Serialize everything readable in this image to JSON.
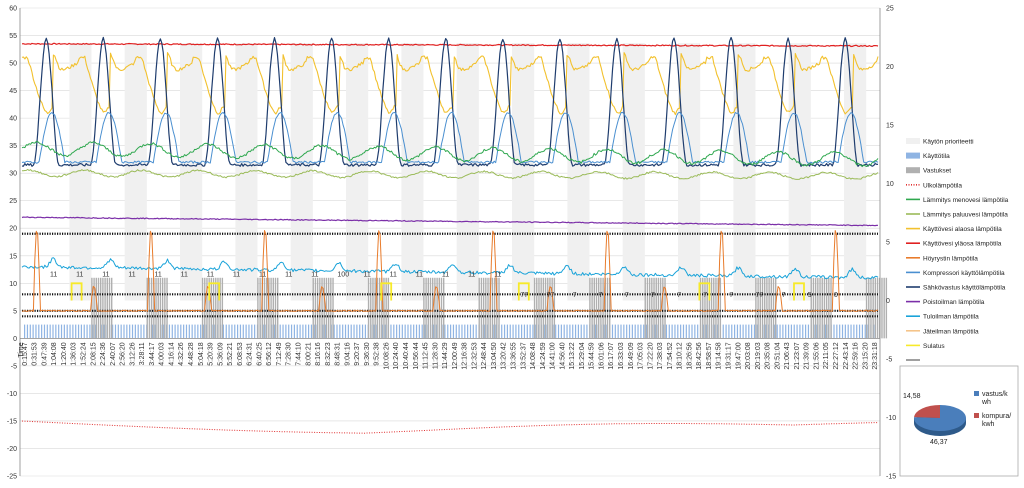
{
  "chart_data": [
    {
      "type": "line",
      "title": "",
      "xlabel": "",
      "ylabel": "",
      "ylim_left": [
        -25,
        60
      ],
      "yticks_left": [
        -25,
        -20,
        -15,
        -10,
        -5,
        0,
        5,
        10,
        15,
        20,
        25,
        30,
        35,
        40,
        45,
        50,
        55,
        60
      ],
      "ylim_right": [
        -15,
        25
      ],
      "yticks_right": [
        -15,
        -10,
        -5,
        0,
        5,
        10,
        15,
        20,
        25
      ],
      "x_first_label": "Time",
      "x": [
        "0:15:47",
        "0:31:53",
        "0:47:39",
        "1:04:08",
        "1:20:40",
        "1:36:03",
        "1:52:24",
        "2:08:15",
        "2:24:36",
        "2:40:07",
        "2:56:20",
        "3:12:26",
        "3:28:11",
        "3:44:17",
        "4:00:03",
        "4:16:14",
        "4:32:26",
        "4:48:28",
        "5:04:18",
        "5:20:39",
        "5:36:09",
        "5:52:21",
        "6:08:53",
        "6:24:31",
        "6:40:25",
        "6:56:12",
        "7:12:49",
        "7:28:30",
        "7:44:10",
        "8:00:21",
        "8:16:16",
        "8:32:23",
        "8:48:31",
        "9:04:16",
        "9:20:37",
        "9:36:30",
        "9:52:38",
        "10:08:26",
        "10:24:40",
        "10:40:44",
        "10:56:44",
        "11:12:45",
        "11:28:30",
        "11:44:29",
        "12:00:49",
        "12:16:38",
        "12:32:53",
        "12:48:44",
        "13:04:50",
        "13:20:42",
        "13:36:55",
        "13:52:37",
        "14:08:48",
        "14:24:59",
        "14:41:00",
        "14:56:40",
        "15:13:22",
        "15:29:04",
        "15:44:59",
        "16:01:06",
        "16:17:07",
        "16:33:03",
        "16:49:09",
        "17:05:03",
        "17:22:20",
        "17:38:03",
        "17:54:52",
        "18:10:12",
        "18:26:56",
        "18:42:56",
        "18:58:57",
        "19:14:58",
        "19:31:17",
        "19:47:00",
        "20:03:08",
        "20:19:03",
        "20:35:08",
        "20:51:04",
        "21:06:43",
        "21:23:07",
        "21:39:09",
        "21:55:06",
        "22:11:05",
        "22:27:12",
        "22:43:14",
        "22:59:16",
        "23:15:20",
        "23:31:18"
      ],
      "series": [
        {
          "name": "Käytön prioriteetti",
          "color": "#f0f0f0",
          "axis": "right",
          "kind": "area"
        },
        {
          "name": "Käyttötila",
          "color": "#8fb4e3",
          "axis": "right",
          "kind": "bar"
        },
        {
          "name": "Vastukset",
          "color": "#b0b0b0",
          "axis": "right",
          "kind": "bar"
        },
        {
          "name": "Ulkolämpötila",
          "color": "#e03030",
          "axis": "right",
          "kind": "dotted",
          "approx_range": [
            -12,
            -10
          ]
        },
        {
          "name": "Lämmitys menovesi lämpötila",
          "color": "#2fa84f",
          "axis": "left",
          "approx_range": [
            31,
            36
          ]
        },
        {
          "name": "Lämmitys paluuvesi lämpötila",
          "color": "#9bbb59",
          "axis": "left",
          "approx_range": [
            29,
            31
          ]
        },
        {
          "name": "Käyttövesi alaosa lämpötila",
          "color": "#f2c12e",
          "axis": "left",
          "approx_range": [
            37,
            55
          ]
        },
        {
          "name": "Käyttövesi yläosa lämpötila",
          "color": "#e02020",
          "axis": "left",
          "approx_range": [
            53,
            54
          ]
        },
        {
          "name": "Höyrystin lämpötila",
          "color": "#e87c2c",
          "axis": "left",
          "approx_range": [
            5,
            21
          ]
        },
        {
          "name": "Kompressori käyttölämpötila",
          "color": "#4a8fd0",
          "axis": "left",
          "approx_range": [
            31,
            42
          ]
        },
        {
          "name": "Sähkövastus käyttölämpötila",
          "color": "#1f3d6e",
          "axis": "left",
          "approx_range": [
            31,
            55
          ]
        },
        {
          "name": "Poistoilman lämpötila",
          "color": "#7b2fa8",
          "axis": "left",
          "approx_range": [
            20,
            22
          ]
        },
        {
          "name": "Tuloilman lämpötila",
          "color": "#1aa3d9",
          "axis": "left",
          "approx_range": [
            10,
            14
          ]
        },
        {
          "name": "Jäteilman lämpötila",
          "color": "#f5c48a",
          "axis": "left"
        },
        {
          "name": "Sulatus",
          "color": "#f7ea2a",
          "axis": "right",
          "kind": "step"
        },
        {
          "name": "",
          "color": "#888888",
          "axis": "left"
        }
      ],
      "point_labels": [
        "11",
        "11",
        "11",
        "11",
        "11",
        "11",
        "11",
        "11",
        "11",
        "11",
        "11",
        "100",
        "11",
        "11",
        "11",
        "11",
        "11",
        "11",
        "77",
        "77",
        "7",
        "7",
        "7",
        "7",
        "7",
        "7",
        "7",
        "77",
        "7",
        "5",
        "0"
      ]
    },
    {
      "type": "pie",
      "slices": [
        {
          "label": "vastus/kwh",
          "value": 46.37,
          "value_label": "46,37",
          "color": "#4a7ebb"
        },
        {
          "label": "kompura/kwh",
          "value": 14.58,
          "value_label": "14,58",
          "color": "#c0504d"
        }
      ]
    }
  ]
}
